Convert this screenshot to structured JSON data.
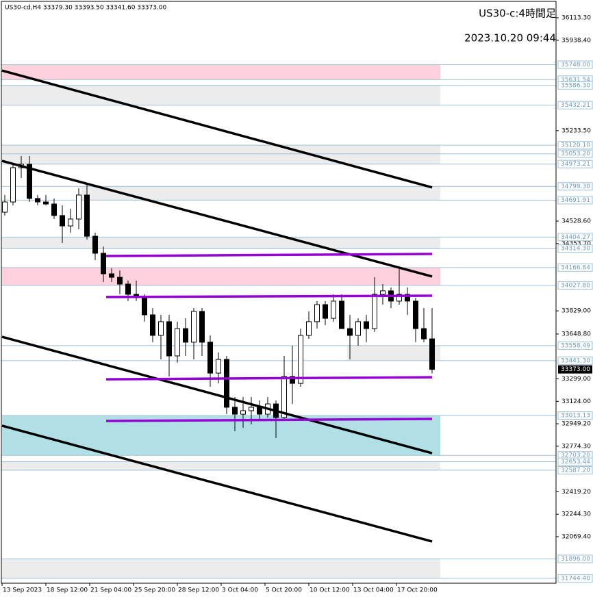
{
  "chart_data": {
    "type": "candlestick",
    "header": "US30-cd,H4  33379.30 33393.50 33341.60 33373.00",
    "title": "US30-c:4時間足",
    "subtitle": "2023.10.20 09:44",
    "up_color": "#ffffff",
    "down_color": "#000000",
    "xlim": [
      -0.25,
      202.25
    ],
    "ylim": [
      31706.6,
      36241.3
    ],
    "xticks": [
      {
        "value": 0,
        "label": "13 Sep 2023"
      },
      {
        "value": 16,
        "label": "18 Sep 12:00"
      },
      {
        "value": 32,
        "label": "21 Sep 04:00"
      },
      {
        "value": 48,
        "label": "25 Sep 20:00"
      },
      {
        "value": 64,
        "label": "28 Sep 12:00"
      },
      {
        "value": 80,
        "label": "3 Oct 04:00"
      },
      {
        "value": 96,
        "label": "5 Oct 20:00"
      },
      {
        "value": 112,
        "label": "10 Oct 12:00"
      },
      {
        "value": 128,
        "label": "13 Oct 04:00"
      },
      {
        "value": 144,
        "label": "17 Oct 20:00"
      }
    ],
    "yticks": [
      {
        "value": 36113.3,
        "label": "36113.30"
      },
      {
        "value": 35938.4,
        "label": "35938.40"
      },
      {
        "value": 35233.5,
        "label": "35233.50"
      },
      {
        "value": 34528.6,
        "label": "34528.60"
      },
      {
        "value": 34353.7,
        "label": "34353.70"
      },
      {
        "value": 33829,
        "label": "33829.00"
      },
      {
        "value": 33648.8,
        "label": "33648.80"
      },
      {
        "value": 33299,
        "label": "33299.00"
      },
      {
        "value": 33124,
        "label": "33124.00"
      },
      {
        "value": 32949.2,
        "label": "32949.20"
      },
      {
        "value": 32774.3,
        "label": "32774.30"
      },
      {
        "value": 32419.2,
        "label": "32419.20"
      },
      {
        "value": 32244.3,
        "label": "32244.30"
      },
      {
        "value": 32069.4,
        "label": "32069.40"
      }
    ],
    "levels": [
      {
        "value": 35748,
        "label": "35748.00"
      },
      {
        "value": 35631.54,
        "label": "35631.54"
      },
      {
        "value": 35586.3,
        "label": "35586.30"
      },
      {
        "value": 35432.21,
        "label": "35432.21"
      },
      {
        "value": 35120.1,
        "label": "35120.10"
      },
      {
        "value": 35053.2,
        "label": "35053.20"
      },
      {
        "value": 34973.21,
        "label": "34973.21"
      },
      {
        "value": 34799.3,
        "label": "34799.30"
      },
      {
        "value": 34691.91,
        "label": "34691.91"
      },
      {
        "value": 34404.27,
        "label": "34404.27"
      },
      {
        "value": 34314.3,
        "label": "34314.30"
      },
      {
        "value": 34166.84,
        "label": "34166.84"
      },
      {
        "value": 34027.8,
        "label": "34027.80"
      },
      {
        "value": 33558.49,
        "label": "33558.49"
      },
      {
        "value": 33441.3,
        "label": "33441.30"
      },
      {
        "value": 33013.13,
        "label": "33013.13"
      },
      {
        "value": 32703.2,
        "label": "32703.20"
      },
      {
        "value": 32653.44,
        "label": "32653.44"
      },
      {
        "value": 32587.2,
        "label": "32587.20"
      },
      {
        "value": 31896,
        "label": "31896.00"
      },
      {
        "value": 31744.4,
        "label": "31744.40"
      }
    ],
    "current": {
      "value": 33373,
      "label": "33373.00"
    },
    "zones": [
      {
        "from": 35748,
        "to": 35631.54,
        "start": 0,
        "end": 160,
        "color": "#ffd1dc"
      },
      {
        "from": 35586.3,
        "to": 35432.21,
        "start": 0,
        "end": 160,
        "color": "#ececec"
      },
      {
        "from": 35120.1,
        "to": 34973.21,
        "start": 0,
        "end": 160,
        "color": "#ececec"
      },
      {
        "from": 34799.3,
        "to": 34691.91,
        "start": 29,
        "end": 160,
        "color": "#ececec"
      },
      {
        "from": 34404.27,
        "to": 34314.3,
        "start": 0,
        "end": 160,
        "color": "#ececec"
      },
      {
        "from": 34166.84,
        "to": 34027.8,
        "start": 0,
        "end": 160,
        "color": "#ffd1dc"
      },
      {
        "from": 33558.49,
        "to": 33441.3,
        "start": 126,
        "end": 160,
        "color": "#ececec"
      },
      {
        "from": 33013.13,
        "to": 32703.2,
        "start": 0,
        "end": 160,
        "color": "#b0e0e6"
      },
      {
        "from": 32653.44,
        "to": 32587.2,
        "start": 0,
        "end": 160,
        "color": "#ececec"
      },
      {
        "from": 31896,
        "to": 31744.4,
        "start": 0,
        "end": 160,
        "color": "#ececec"
      }
    ],
    "trendlines": [
      {
        "x": [
          0,
          157
        ],
        "y": [
          35702,
          34791
        ],
        "color": "#000000"
      },
      {
        "x": [
          0,
          157
        ],
        "y": [
          34998,
          34097
        ],
        "color": "#000000"
      },
      {
        "x": [
          0,
          157
        ],
        "y": [
          33627,
          32720
        ],
        "color": "#000000"
      },
      {
        "x": [
          0,
          157
        ],
        "y": [
          32934,
          32032
        ],
        "color": "#000000"
      },
      {
        "x": [
          38,
          157
        ],
        "y": [
          34257,
          34273
        ],
        "color": "#9400d3"
      },
      {
        "x": [
          38,
          157
        ],
        "y": [
          33937,
          33947
        ],
        "color": "#9400d3"
      },
      {
        "x": [
          38,
          157
        ],
        "y": [
          33296,
          33312
        ],
        "color": "#9400d3"
      },
      {
        "x": [
          38,
          157
        ],
        "y": [
          32971,
          32987
        ],
        "color": "#9400d3"
      }
    ],
    "x": [
      1,
      4,
      7,
      10,
      13,
      16,
      19,
      22,
      25,
      28,
      31,
      34,
      37,
      40,
      43,
      46,
      49,
      52,
      55,
      58,
      61,
      64,
      67,
      70,
      73,
      76,
      79,
      82,
      85,
      88,
      91,
      94,
      97,
      100,
      103,
      106,
      109,
      112,
      115,
      118,
      121,
      124,
      127,
      130,
      133,
      136,
      139,
      142,
      145,
      148,
      151,
      154,
      157
    ],
    "open": [
      34598,
      34678,
      34945,
      34972,
      34705,
      34678,
      34662,
      34572,
      34491,
      34545,
      34732,
      34411,
      34278,
      34118,
      34091,
      34038,
      33958,
      33931,
      33798,
      33638,
      33745,
      33478,
      33691,
      33585,
      33825,
      33585,
      33344,
      33451,
      33078,
      33024,
      33051,
      33078,
      33024,
      33104,
      32998,
      33318,
      33264,
      33638,
      33745,
      33878,
      33771,
      33905,
      33691,
      33638,
      33745,
      33691,
      33958,
      33985,
      33905,
      33958,
      33905,
      33691,
      33611
    ],
    "high": [
      34732,
      34972,
      35036,
      35036,
      34732,
      34732,
      34705,
      34652,
      34625,
      34785,
      34812,
      34438,
      34331,
      34161,
      34145,
      34065,
      34065,
      33958,
      33851,
      33798,
      33798,
      33745,
      33771,
      33851,
      33851,
      33638,
      33505,
      33478,
      33158,
      33158,
      33158,
      33131,
      33158,
      33131,
      33478,
      33558,
      33691,
      33825,
      33905,
      33905,
      33958,
      33958,
      33798,
      33771,
      33798,
      34091,
      34038,
      34011,
      34155,
      34011,
      33931,
      33851,
      33851
    ],
    "low": [
      34572,
      34652,
      34865,
      34678,
      34652,
      34652,
      34545,
      34358,
      34438,
      34465,
      34385,
      34225,
      34054,
      34054,
      33958,
      33905,
      33905,
      33745,
      33585,
      33451,
      33318,
      33425,
      33478,
      33451,
      33478,
      33238,
      33264,
      33024,
      32891,
      32918,
      32944,
      32971,
      32998,
      32838,
      32971,
      33104,
      33238,
      33611,
      33691,
      33718,
      33745,
      33691,
      33451,
      33558,
      33585,
      33665,
      33878,
      33851,
      33878,
      33798,
      33585,
      33585,
      33341.6
    ],
    "close": [
      34678,
      34945,
      34972,
      34705,
      34678,
      34662,
      34572,
      34491,
      34545,
      34732,
      34411,
      34278,
      34118,
      34091,
      34038,
      33958,
      33931,
      33798,
      33638,
      33745,
      33478,
      33691,
      33585,
      33825,
      33585,
      33344,
      33451,
      33078,
      33024,
      33051,
      33078,
      33024,
      33104,
      32998,
      33318,
      33264,
      33638,
      33745,
      33878,
      33771,
      33905,
      33691,
      33638,
      33745,
      33691,
      33958,
      33985,
      33905,
      33958,
      33905,
      33691,
      33611,
      33373
    ]
  }
}
